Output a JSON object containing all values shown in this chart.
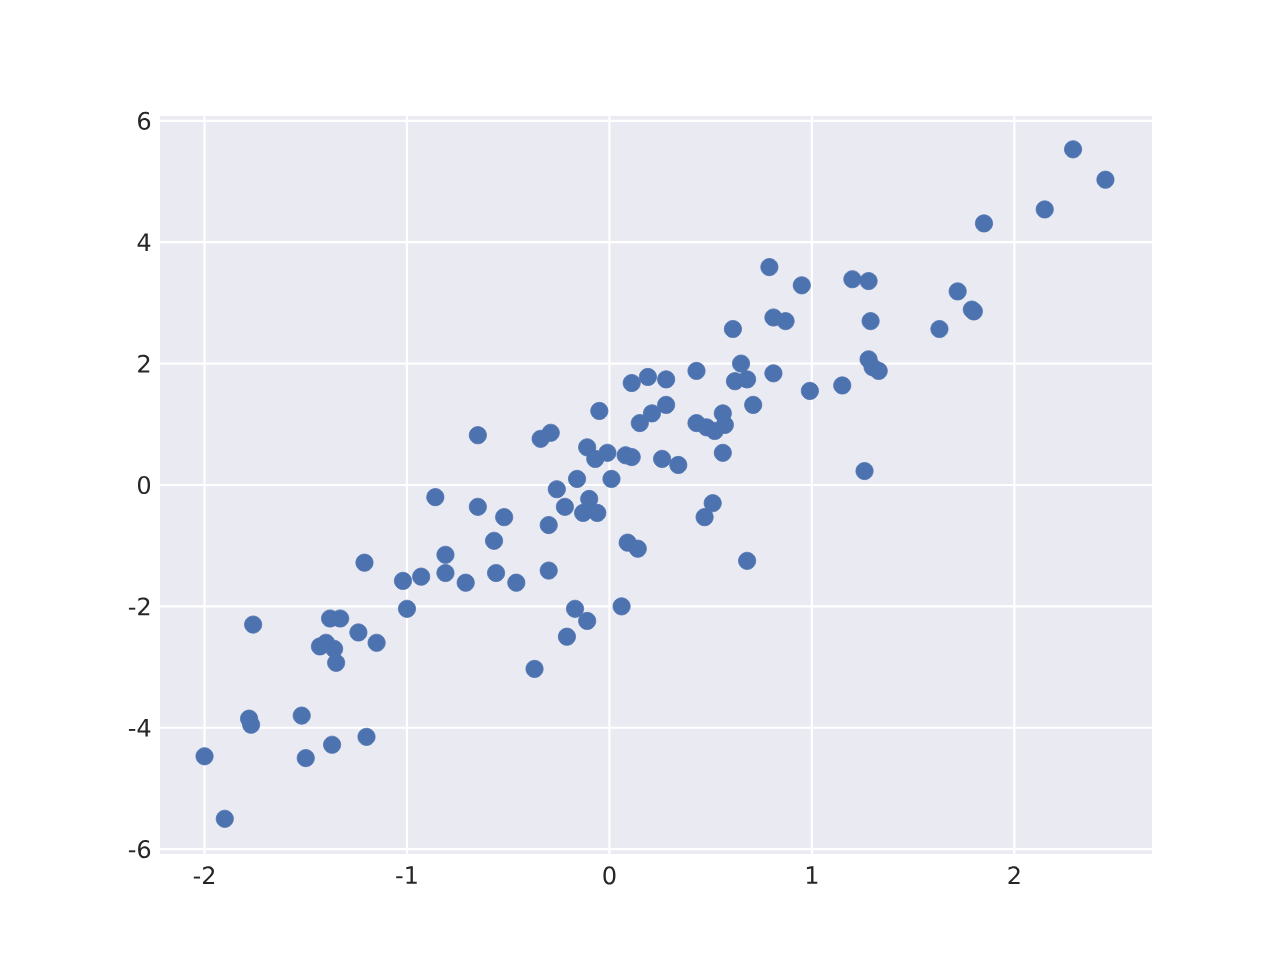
{
  "chart_data": {
    "type": "scatter",
    "color": "#4c72b0",
    "marker": "circle",
    "grid": true,
    "x": [
      -2.0,
      -1.9,
      -1.78,
      -1.77,
      -1.76,
      -1.52,
      -1.5,
      -1.37,
      -1.2,
      -1.21,
      -1.43,
      -1.4,
      -1.38,
      -1.33,
      -1.36,
      -1.35,
      -1.24,
      -1.15,
      -1.02,
      -1.0,
      -0.93,
      -0.86,
      -0.81,
      -0.81,
      -0.71,
      -0.65,
      -0.65,
      -0.57,
      -0.56,
      -0.52,
      -0.46,
      -0.37,
      -0.34,
      -0.29,
      -0.3,
      -0.3,
      -0.26,
      -0.22,
      -0.21,
      -0.17,
      -0.16,
      -0.13,
      -0.11,
      -0.11,
      -0.1,
      -0.07,
      -0.06,
      -0.05,
      -0.01,
      0.01,
      0.06,
      0.08,
      0.11,
      0.11,
      0.09,
      0.14,
      0.15,
      0.19,
      0.21,
      0.28,
      0.28,
      0.26,
      0.34,
      0.43,
      0.43,
      0.48,
      0.52,
      0.47,
      0.51,
      0.56,
      0.57,
      0.56,
      0.61,
      0.62,
      0.65,
      0.68,
      0.68,
      0.71,
      0.79,
      0.81,
      0.81,
      0.87,
      0.95,
      0.99,
      1.15,
      1.2,
      1.28,
      1.26,
      1.28,
      1.29,
      1.3,
      1.33,
      1.63,
      1.72,
      1.79,
      1.8,
      1.85,
      2.15,
      2.29,
      2.45
    ],
    "values": [
      -4.47,
      -5.5,
      -3.85,
      -3.95,
      -2.3,
      -3.8,
      -4.5,
      -4.28,
      -4.15,
      -1.28,
      -2.66,
      -2.6,
      -2.2,
      -2.2,
      -2.7,
      -2.93,
      -2.43,
      -2.6,
      -1.58,
      -2.04,
      -1.51,
      -0.2,
      -1.15,
      -1.45,
      -1.61,
      0.82,
      -0.36,
      -0.92,
      -1.45,
      -0.53,
      -1.61,
      -3.03,
      0.76,
      0.86,
      -0.66,
      -1.41,
      -0.07,
      -0.36,
      -2.5,
      -2.04,
      0.1,
      -0.46,
      0.62,
      -2.24,
      -0.23,
      0.43,
      -0.46,
      1.22,
      0.53,
      0.1,
      -2.0,
      0.49,
      1.68,
      0.46,
      -0.95,
      -1.05,
      1.02,
      1.78,
      1.18,
      1.32,
      1.74,
      0.43,
      0.33,
      1.88,
      1.02,
      0.95,
      0.89,
      -0.53,
      -0.3,
      1.18,
      0.99,
      0.53,
      2.57,
      1.71,
      2.0,
      1.74,
      -1.25,
      1.32,
      3.59,
      2.76,
      1.84,
      2.7,
      3.29,
      1.55,
      1.64,
      3.39,
      3.36,
      0.23,
      2.07,
      2.7,
      1.94,
      1.88,
      2.57,
      3.19,
      2.89,
      2.86,
      4.31,
      4.54,
      5.53,
      5.03
    ],
    "xlim": [
      -2.22,
      2.68
    ],
    "ylim": [
      -6.08,
      6.08
    ],
    "xticks": [
      -2,
      -1,
      0,
      1,
      2
    ],
    "yticks": [
      -6,
      -4,
      -2,
      0,
      2,
      4,
      6
    ]
  }
}
